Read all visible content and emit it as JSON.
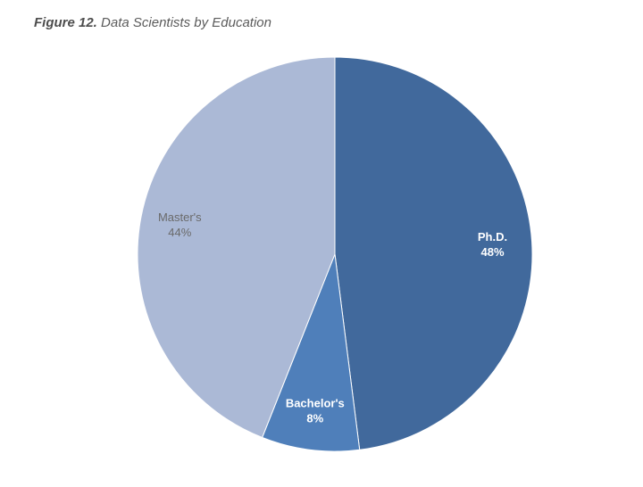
{
  "figure": {
    "number": "Figure 12.",
    "caption": "Data Scientists by Education"
  },
  "chart_data": {
    "type": "pie",
    "title": "Figure 12. Data Scientists by Education",
    "start_angle_deg": 0,
    "direction": "clockwise",
    "slices": [
      {
        "label": "Ph.D.",
        "value": 48,
        "value_label": "48%",
        "color": "#41699c",
        "label_color": "#ffffff",
        "label_bold": true
      },
      {
        "label": "Bachelor's",
        "value": 8,
        "value_label": "8%",
        "color": "#4f7fba",
        "label_color": "#ffffff",
        "label_bold": true
      },
      {
        "label": "Master's",
        "value": 44,
        "value_label": "44%",
        "color": "#abb9d6",
        "label_color": "#6a6a6a",
        "label_bold": false
      }
    ]
  }
}
